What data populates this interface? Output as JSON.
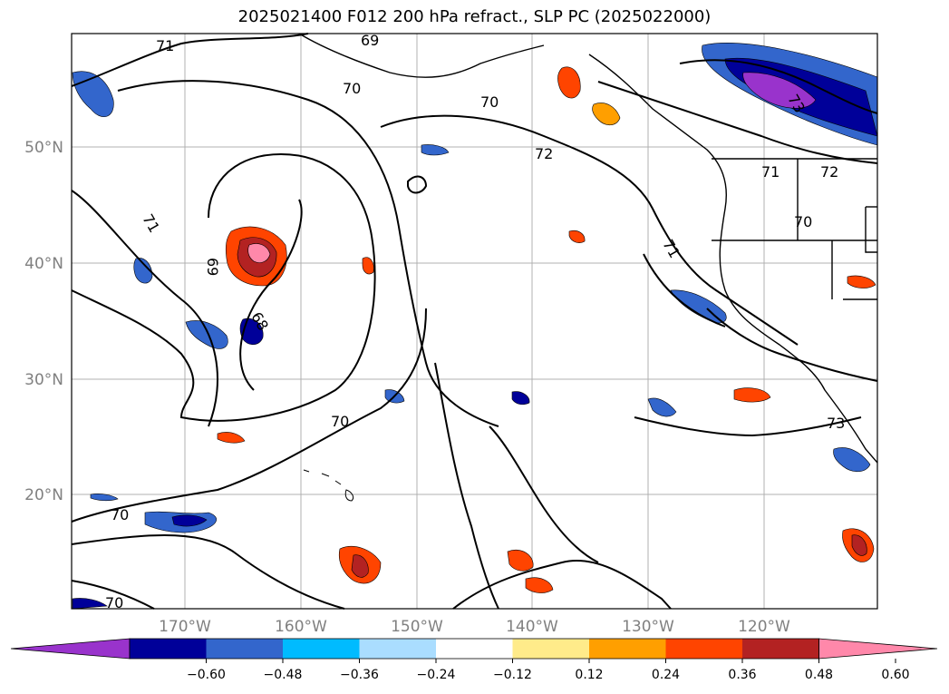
{
  "title": "2025021400 F012 200 hPa refract., SLP PC (2025022000)",
  "lat_labels": [
    "50°N",
    "40°N",
    "30°N",
    "20°N"
  ],
  "lon_labels": [
    "170°W",
    "160°W",
    "150°W",
    "140°W",
    "130°W",
    "120°W"
  ],
  "colorbar": {
    "colors": [
      "#9933cc",
      "#000099",
      "#3366cc",
      "#00bbff",
      "#aaddff",
      "#ffffff",
      "#ffeb8a",
      "#ff9f00",
      "#ff4400",
      "#b32222",
      "#ff88aa"
    ],
    "tick_labels": [
      "−0.60",
      "−0.48",
      "−0.36",
      "−0.24",
      "−0.12",
      "0.12",
      "0.24",
      "0.36",
      "0.48",
      "0.60"
    ]
  },
  "contour_labels": [
    "71",
    "69",
    "70",
    "70",
    "72",
    "71",
    "72",
    "71",
    "70",
    "71",
    "69",
    "68",
    "70",
    "70",
    "70",
    "73",
    "73"
  ]
}
